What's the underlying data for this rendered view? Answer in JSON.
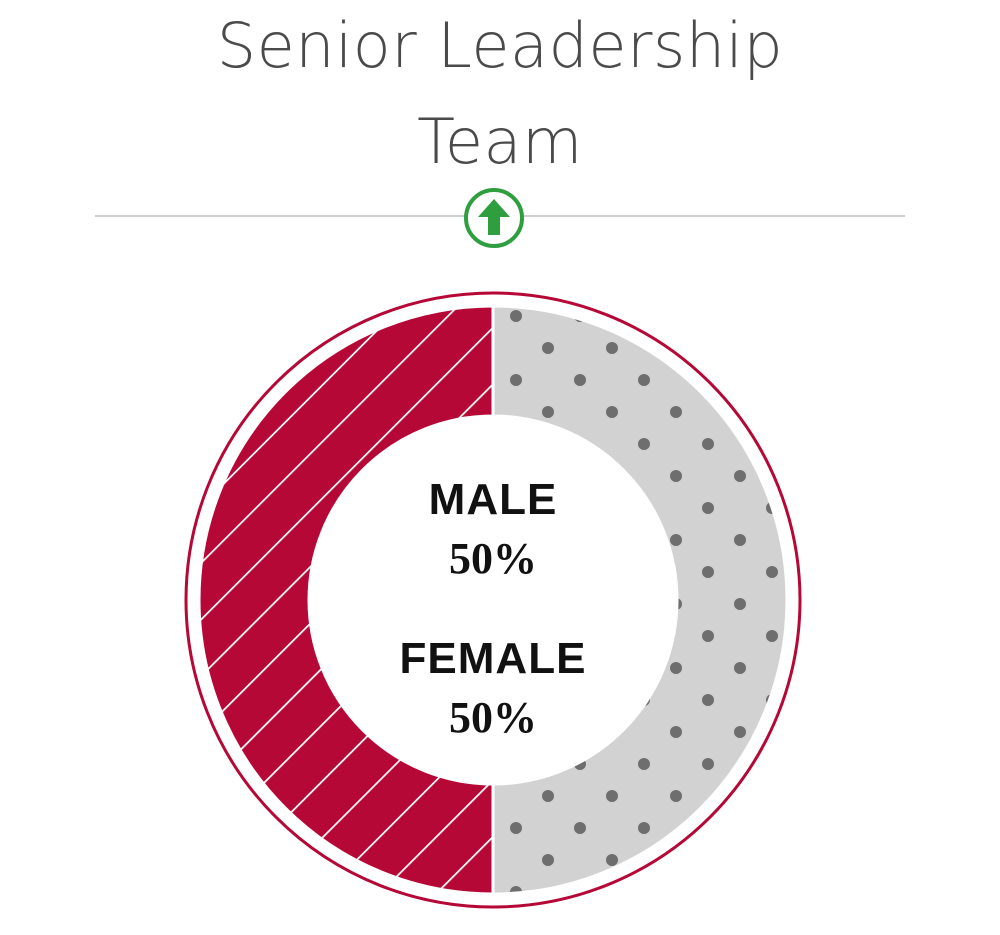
{
  "title": {
    "line1": "Senior Leadership",
    "line2": "Team"
  },
  "trend": {
    "icon": "arrow-up-icon",
    "direction": "up",
    "color": "#2e9e3f"
  },
  "chart_data": {
    "type": "pie",
    "variant": "donut",
    "title": "Senior Leadership Team",
    "slices": [
      {
        "name": "MALE",
        "value": 50,
        "label": "50%",
        "color": "#b60836",
        "pattern": "diagonal-stripes"
      },
      {
        "name": "FEMALE",
        "value": 50,
        "label": "50%",
        "color": "#d2d2d2",
        "pattern": "dots",
        "pattern_color": "#6e6e6e"
      }
    ],
    "ring_color": "#b60836",
    "legend": "center"
  }
}
